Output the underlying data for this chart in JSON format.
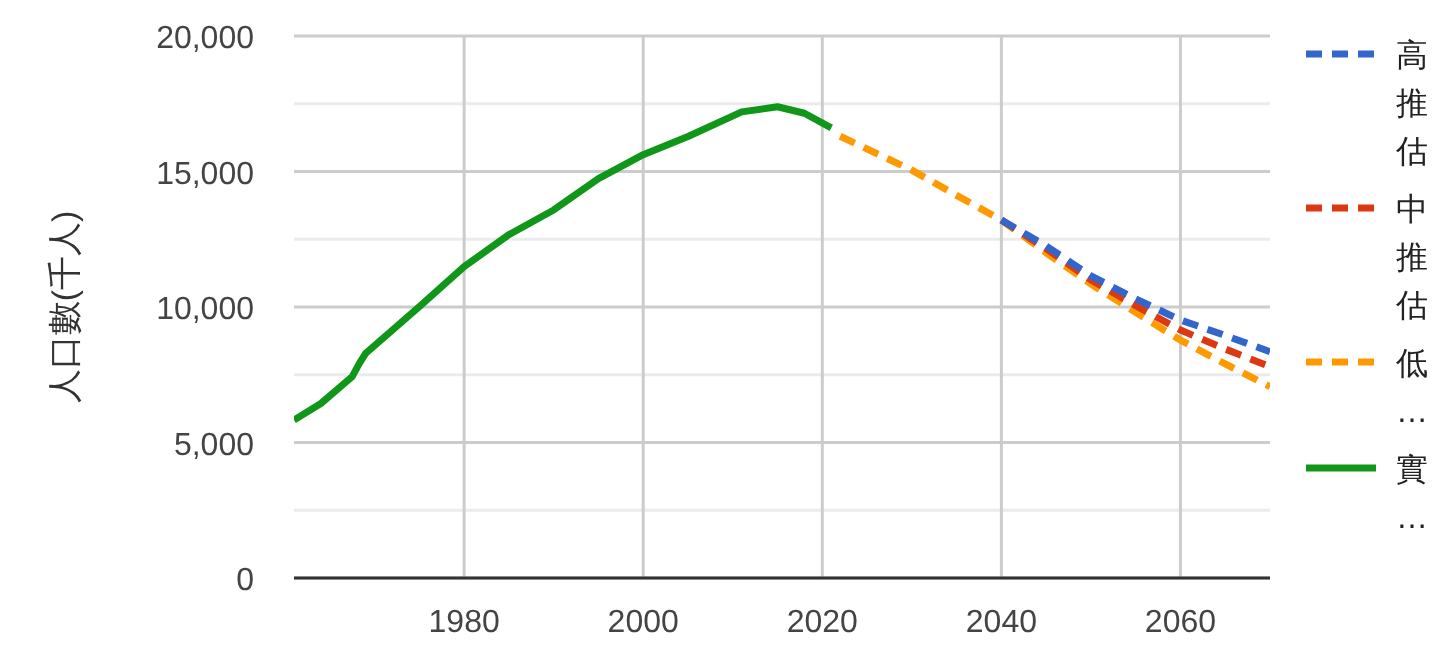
{
  "chart_data": {
    "type": "line",
    "ylabel": "人口數(千人)",
    "xlim": [
      1961,
      2070
    ],
    "xticks": [
      1980,
      2000,
      2020,
      2040,
      2060
    ],
    "ylim": [
      0,
      20000
    ],
    "yticks": [
      {
        "value": 0,
        "label": "0"
      },
      {
        "value": 2500,
        "label": null
      },
      {
        "value": 5000,
        "label": "5,000"
      },
      {
        "value": 7500,
        "label": null
      },
      {
        "value": 10000,
        "label": "10,000"
      },
      {
        "value": 12500,
        "label": null
      },
      {
        "value": 15000,
        "label": "15,000"
      },
      {
        "value": 17500,
        "label": null
      },
      {
        "value": 20000,
        "label": "20,000"
      }
    ],
    "grid": true,
    "legend": "right",
    "marker": "none",
    "series": [
      {
        "name": "高推估",
        "color": "#3366cc",
        "line_style": "dashed",
        "x": [
          2040,
          2045,
          2050,
          2055,
          2060,
          2065,
          2070
        ],
        "values": [
          13210,
          12250,
          11150,
          10300,
          9520,
          8950,
          8350
        ]
      },
      {
        "name": "中推估",
        "color": "#dc3912",
        "line_style": "dashed",
        "x": [
          2040,
          2045,
          2050,
          2055,
          2060,
          2065,
          2070
        ],
        "values": [
          13210,
          12150,
          11000,
          10050,
          9150,
          8450,
          7800
        ]
      },
      {
        "name": "低…",
        "color": "#ff9900",
        "line_style": "dashed",
        "x": [
          2022,
          2030,
          2035,
          2040,
          2045,
          2050,
          2055,
          2060,
          2065,
          2070
        ],
        "values": [
          16300,
          15050,
          14120,
          13210,
          12000,
          10850,
          9800,
          8780,
          7900,
          7060
        ]
      },
      {
        "name": "實…",
        "color": "#109618",
        "line_style": "solid",
        "x": [
          1961,
          1964,
          1967.5,
          1968.3,
          1969,
          1975,
          1980,
          1985,
          1990,
          1995,
          2000,
          2005,
          2011,
          2015,
          2018,
          2021
        ],
        "values": [
          5830,
          6440,
          7430,
          7920,
          8290,
          10010,
          11490,
          12670,
          13580,
          14740,
          15620,
          16290,
          17200,
          17390,
          17150,
          16610
        ]
      }
    ]
  }
}
